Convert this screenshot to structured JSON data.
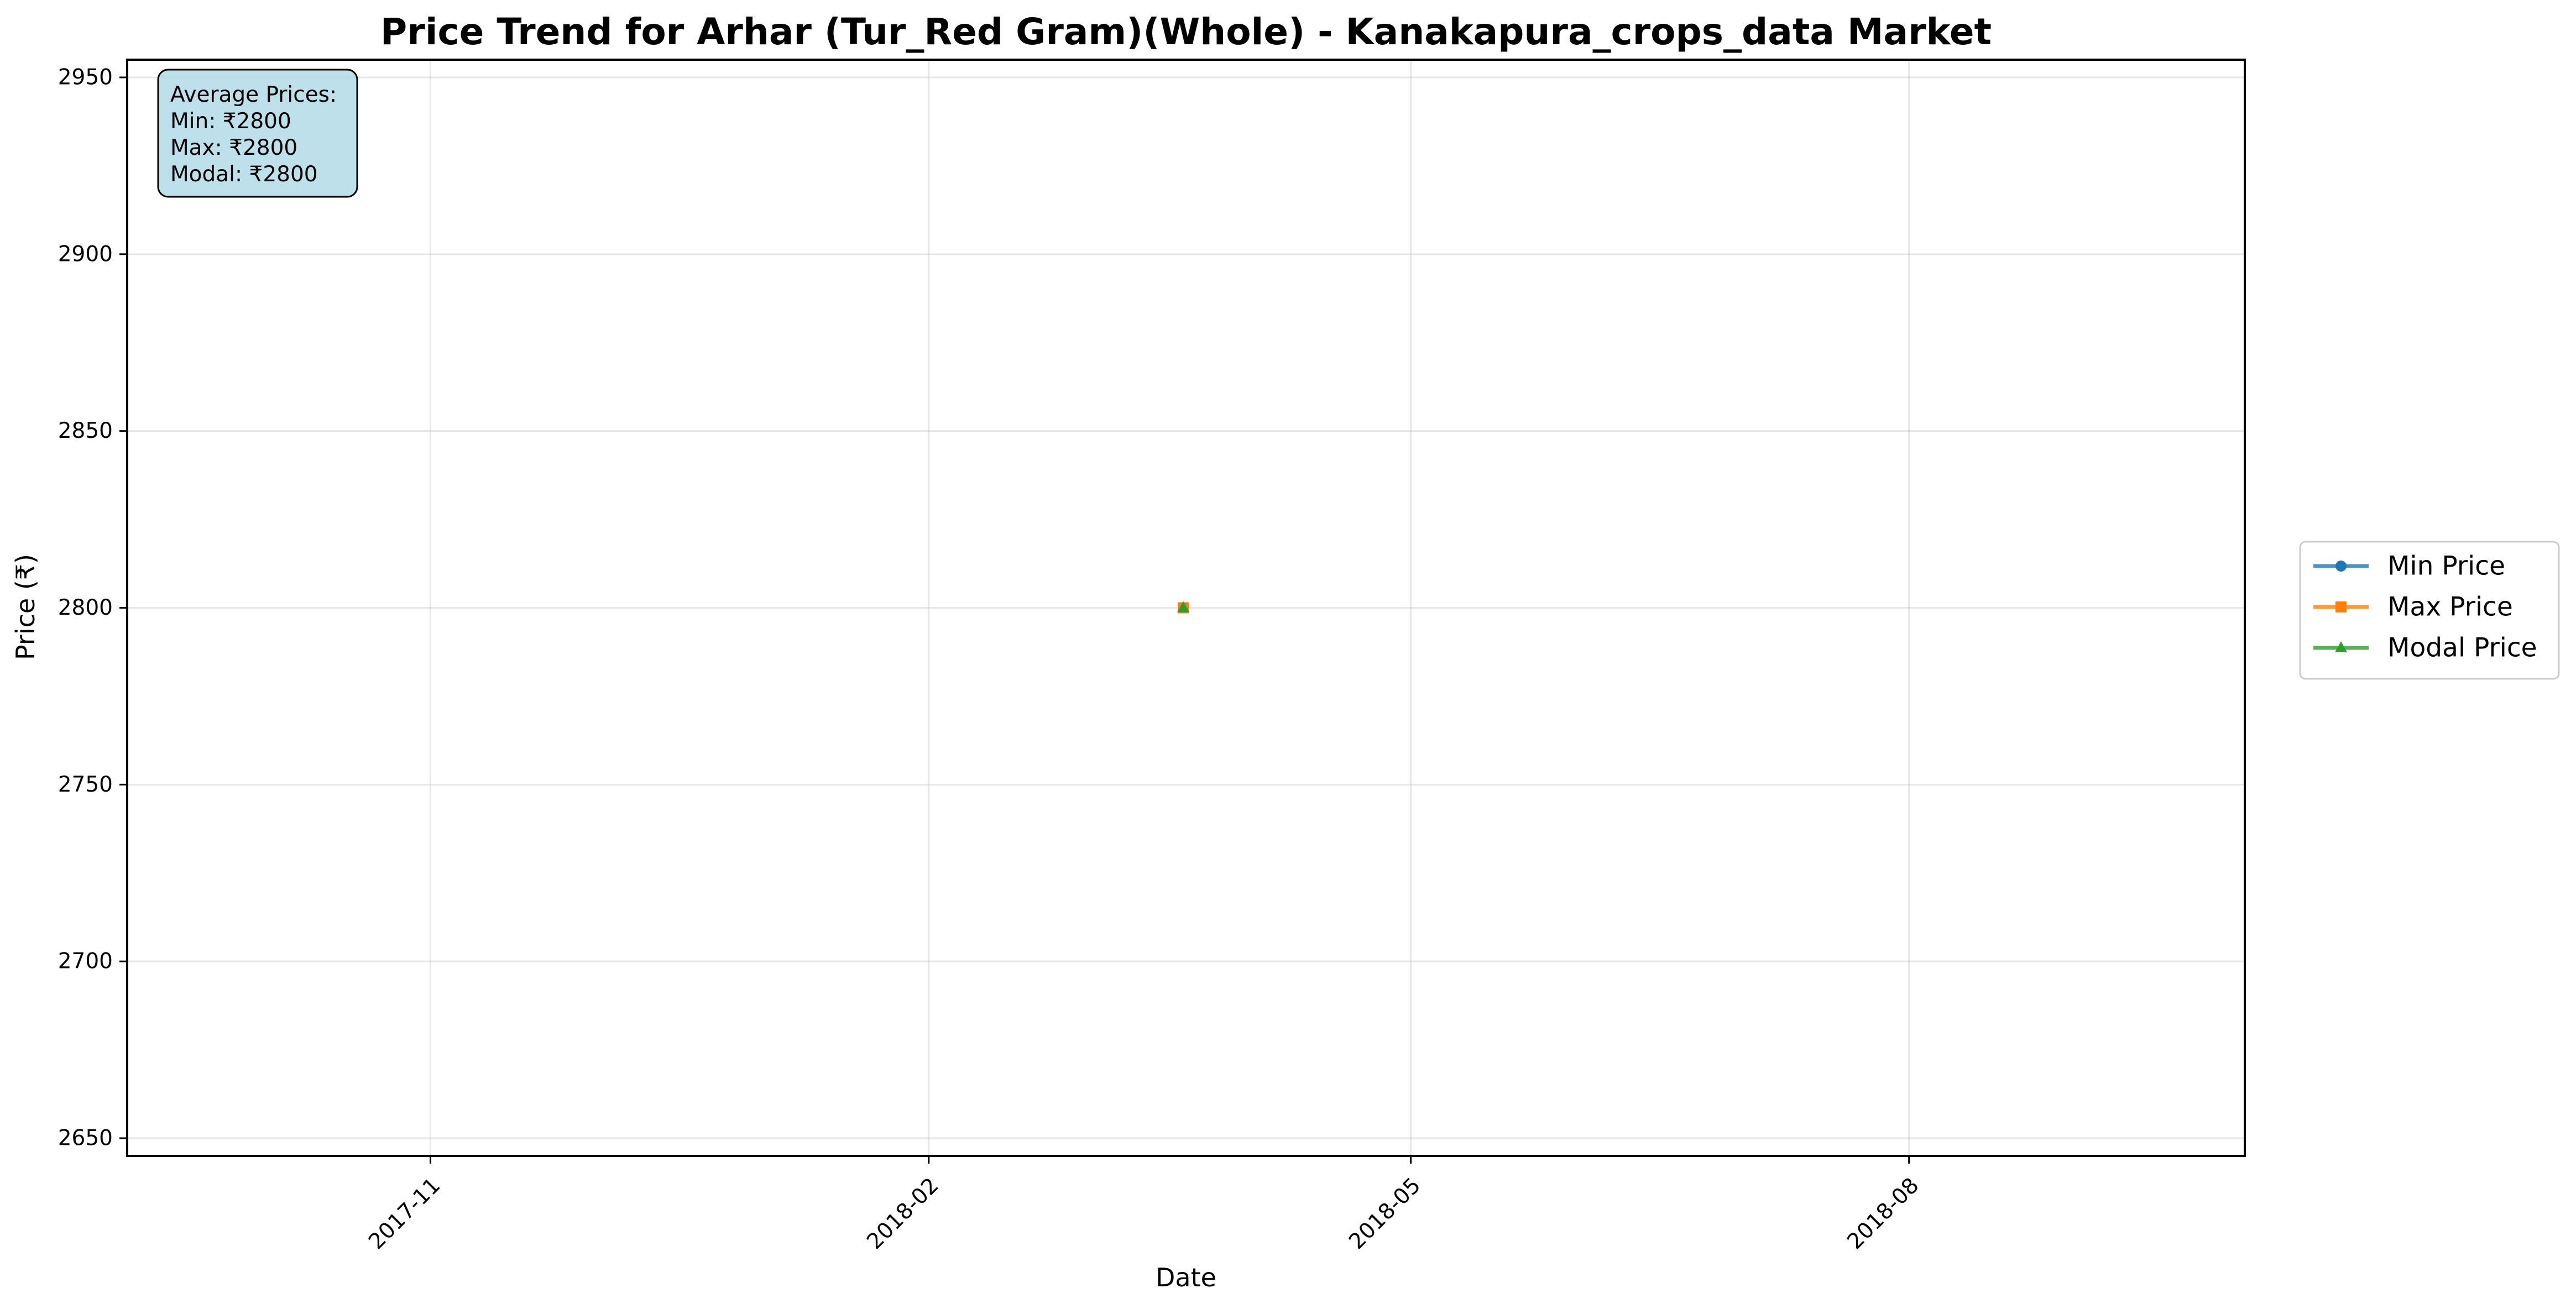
{
  "chart_data": {
    "type": "line",
    "title": "Price Trend for Arhar (Tur_Red Gram)(Whole) - Kanakapura_crops_data Market",
    "xlabel": "Date",
    "ylabel": "Price (₹)",
    "x_axis": {
      "type": "date",
      "range": [
        "2017-09-06",
        "2018-10-02"
      ],
      "ticks": [
        "2017-11-01",
        "2018-02-01",
        "2018-05-01",
        "2018-08-01"
      ],
      "tick_labels": [
        "2017-11",
        "2018-02",
        "2018-05",
        "2018-08"
      ],
      "tick_label_rotation_deg": 45
    },
    "y_axis": {
      "range": [
        2645,
        2955
      ],
      "ticks": [
        2650,
        2700,
        2750,
        2800,
        2850,
        2900,
        2950
      ],
      "tick_labels": [
        "2650",
        "2700",
        "2750",
        "2800",
        "2850",
        "2900",
        "2950"
      ]
    },
    "grid": true,
    "legend_placement": "center-right-outside",
    "series": [
      {
        "name": "Min Price",
        "color": "#1f77b4",
        "marker": "circle",
        "points": [
          {
            "x": "2018-03-20",
            "y": 2800
          }
        ]
      },
      {
        "name": "Max Price",
        "color": "#ff7f0e",
        "marker": "square",
        "points": [
          {
            "x": "2018-03-20",
            "y": 2800
          }
        ]
      },
      {
        "name": "Modal Price",
        "color": "#2ca02c",
        "marker": "triangle",
        "points": [
          {
            "x": "2018-03-20",
            "y": 2800
          }
        ]
      }
    ],
    "annotation": {
      "placement": "top-left",
      "background_color": "#add8e6",
      "lines": [
        "Average Prices:",
        "Min: ₹2800",
        "Max: ₹2800",
        "Modal: ₹2800"
      ]
    }
  }
}
